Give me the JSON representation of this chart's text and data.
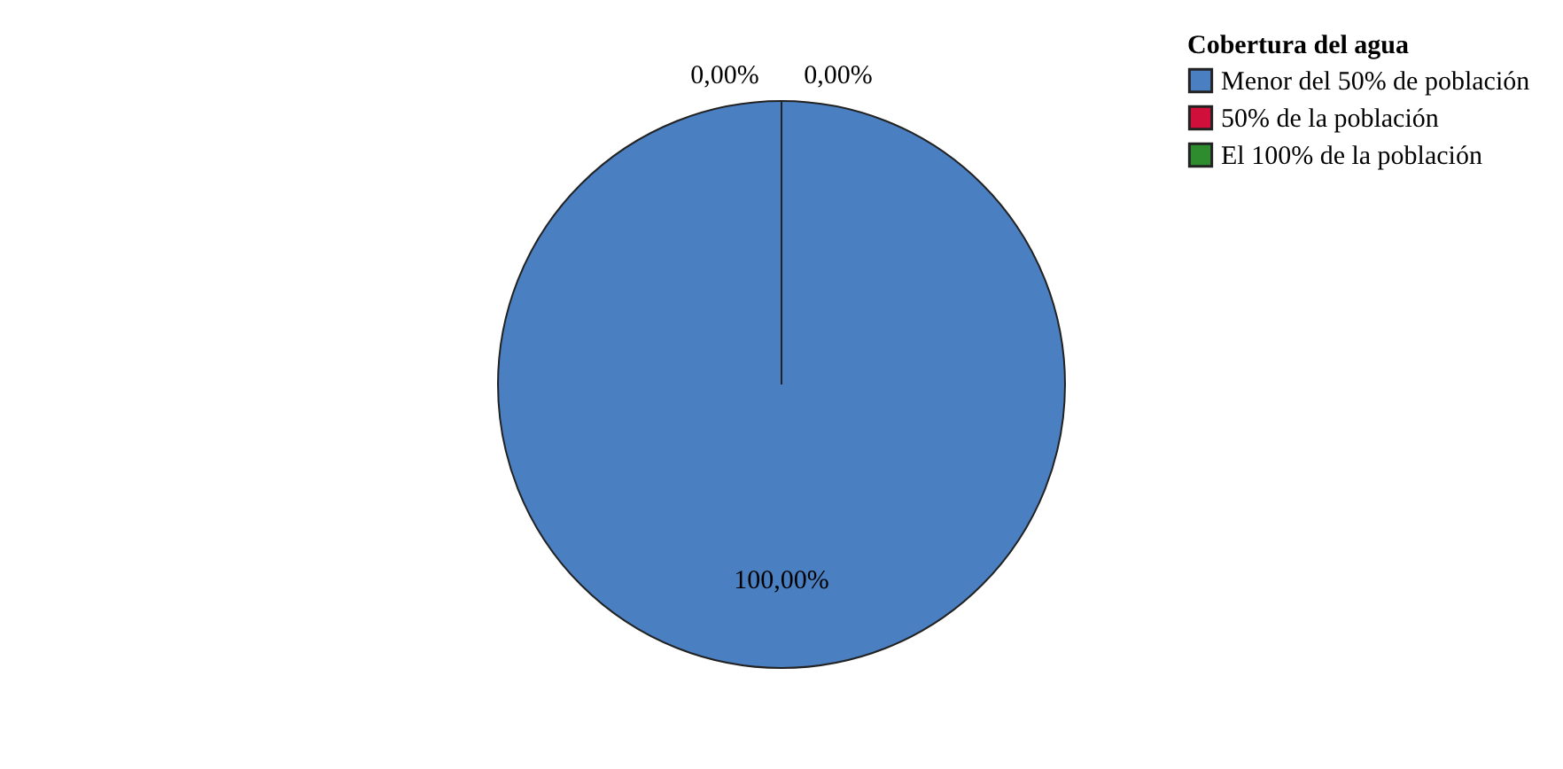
{
  "chart_data": {
    "type": "pie",
    "legend_title": "Cobertura del agua",
    "legend": "top right",
    "categories": [
      "Menor del 50% de población",
      "50% de la población",
      "El 100% de la población"
    ],
    "values": [
      100,
      0,
      0
    ],
    "colors": [
      "#4a7fc1",
      "#d0103a",
      "#2e8b2e"
    ],
    "value_labels": [
      "100,00%",
      "0,00%",
      "0,00%"
    ]
  }
}
